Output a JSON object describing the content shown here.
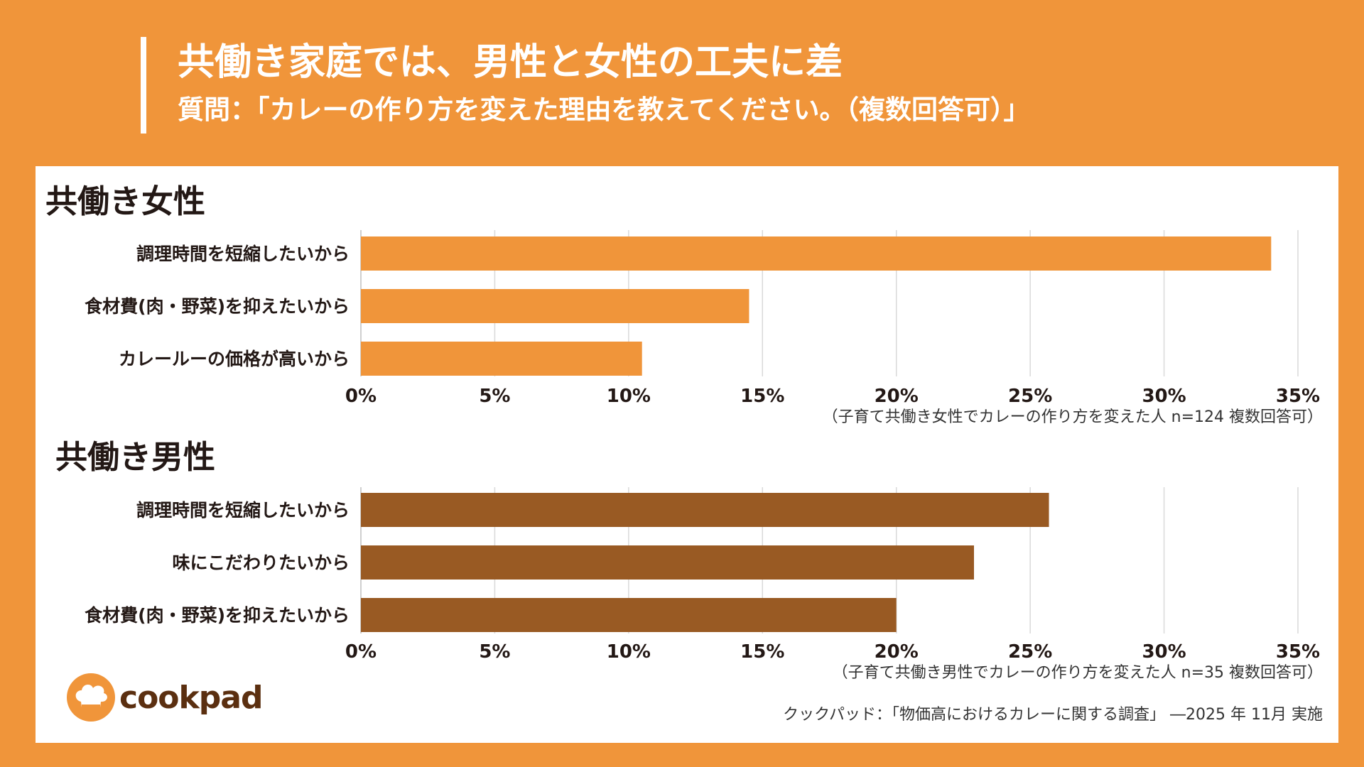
{
  "header": {
    "title": "共働き家庭では、男性と女性の工夫に差",
    "subtitle": "質問：「カレーの作り方を変えた理由を教えてください。（複数回答可）」"
  },
  "colors": {
    "background": "#f0953a",
    "female_bar": "#f0953a",
    "male_bar": "#995a23",
    "grid": "#d9d9d9"
  },
  "chart_data": [
    {
      "type": "bar",
      "orientation": "horizontal",
      "title": "共働き女性",
      "categories": [
        "調理時間を短縮したいから",
        "食材費(肉・野菜)を抑えたいから",
        "カレールーの価格が高いから"
      ],
      "values": [
        34,
        14.5,
        10.5
      ],
      "unit": "%",
      "xlim": [
        0,
        35
      ],
      "xticks": [
        "0%",
        "5%",
        "10%",
        "15%",
        "20%",
        "25%",
        "30%",
        "35%"
      ],
      "grid": true,
      "note": "（子育て共働き女性でカレーの作り方を変えた人 n=124 複数回答可）"
    },
    {
      "type": "bar",
      "orientation": "horizontal",
      "title": "共働き男性",
      "categories": [
        "調理時間を短縮したいから",
        "味にこだわりたいから",
        "食材費(肉・野菜)を抑えたいから"
      ],
      "values": [
        25.7,
        22.9,
        20
      ],
      "unit": "%",
      "xlim": [
        0,
        35
      ],
      "xticks": [
        "0%",
        "5%",
        "10%",
        "15%",
        "20%",
        "25%",
        "30%",
        "35%"
      ],
      "grid": true,
      "note": "（子育て共働き男性でカレーの作り方を変えた人 n=35 複数回答可）"
    }
  ],
  "logo": {
    "text": "cookpad",
    "icon": "chef-hat-icon"
  },
  "footer": {
    "source": "クックパッド：「物価高におけるカレーに関する調査」 ―2025 年 11月 実施"
  }
}
